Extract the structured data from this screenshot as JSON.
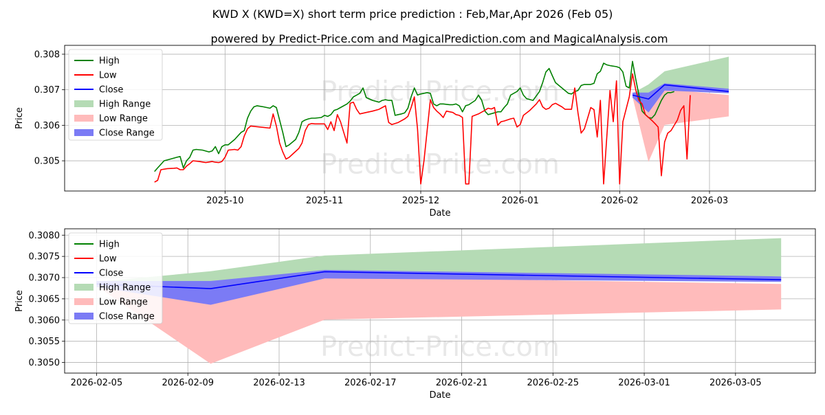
{
  "title_line1": "KWD X (KWD=X) short term price prediction : Feb,Mar,Apr 2026 (Feb 05)",
  "title_line2": "powered by Predict-Price.com and MagicalPrediction.com and MagicalAnalysis.com",
  "watermark": "Predict-Price.com",
  "colors": {
    "high": "#008000",
    "low": "#ff0000",
    "close": "#0000ff",
    "high_range": "#b5dbb5",
    "low_range": "#ffbbbb",
    "close_range": "#7b7bf5"
  },
  "legend": [
    "High",
    "Low",
    "Close",
    "High Range",
    "Low Range",
    "Close Range"
  ],
  "chart_data": [
    {
      "type": "line",
      "name": "history",
      "xlabel": "Date",
      "ylabel": "Price",
      "ylim": [
        0.30415,
        0.30825
      ],
      "xlim_days": [
        -20,
        214
      ],
      "x_origin": "2025-09-01",
      "xticks": [
        {
          "day": 30,
          "label": "2025-10"
        },
        {
          "day": 61,
          "label": "2025-11"
        },
        {
          "day": 91,
          "label": "2025-12"
        },
        {
          "day": 122,
          "label": "2026-01"
        },
        {
          "day": 153,
          "label": "2026-02"
        },
        {
          "day": 181,
          "label": "2026-03"
        }
      ],
      "yticks": [
        {
          "v": 0.305,
          "label": "0.305"
        },
        {
          "v": 0.306,
          "label": "0.306"
        },
        {
          "v": 0.307,
          "label": "0.307"
        },
        {
          "v": 0.308,
          "label": "0.308"
        }
      ],
      "high": [
        [
          8,
          0.3047
        ],
        [
          9,
          0.3048
        ],
        [
          11,
          0.305
        ],
        [
          13,
          0.30505
        ],
        [
          15,
          0.3051
        ],
        [
          16,
          0.30512
        ],
        [
          17,
          0.3048
        ],
        [
          18,
          0.305
        ],
        [
          19,
          0.3051
        ],
        [
          20,
          0.3053
        ],
        [
          21,
          0.30532
        ],
        [
          23,
          0.3053
        ],
        [
          25,
          0.30525
        ],
        [
          26,
          0.30528
        ],
        [
          27,
          0.3054
        ],
        [
          28,
          0.3052
        ],
        [
          29,
          0.3054
        ],
        [
          30,
          0.30545
        ],
        [
          31,
          0.30545
        ],
        [
          33,
          0.3056
        ],
        [
          35,
          0.3058
        ],
        [
          36,
          0.30585
        ],
        [
          37,
          0.3062
        ],
        [
          38,
          0.3064
        ],
        [
          39,
          0.30652
        ],
        [
          40,
          0.30655
        ],
        [
          42,
          0.30652
        ],
        [
          44,
          0.30648
        ],
        [
          45,
          0.30655
        ],
        [
          46,
          0.3065
        ],
        [
          48,
          0.3058
        ],
        [
          49,
          0.3054
        ],
        [
          50,
          0.30545
        ],
        [
          52,
          0.3056
        ],
        [
          53,
          0.3058
        ],
        [
          54,
          0.3061
        ],
        [
          55,
          0.30615
        ],
        [
          56,
          0.30618
        ],
        [
          57,
          0.3062
        ],
        [
          58,
          0.3062
        ],
        [
          60,
          0.30622
        ],
        [
          61,
          0.30628
        ],
        [
          62,
          0.30625
        ],
        [
          63,
          0.3063
        ],
        [
          64,
          0.30642
        ],
        [
          65,
          0.30645
        ],
        [
          66,
          0.3065
        ],
        [
          68,
          0.3066
        ],
        [
          69,
          0.30668
        ],
        [
          70,
          0.3068
        ],
        [
          71,
          0.30685
        ],
        [
          72,
          0.3069
        ],
        [
          73,
          0.30705
        ],
        [
          74,
          0.30678
        ],
        [
          76,
          0.3067
        ],
        [
          78,
          0.30665
        ],
        [
          79,
          0.3067
        ],
        [
          80,
          0.30672
        ],
        [
          81,
          0.3067
        ],
        [
          82,
          0.3067
        ],
        [
          83,
          0.30628
        ],
        [
          84,
          0.3063
        ],
        [
          85,
          0.30632
        ],
        [
          86,
          0.30635
        ],
        [
          87,
          0.30648
        ],
        [
          88,
          0.3068
        ],
        [
          89,
          0.30705
        ],
        [
          90,
          0.30685
        ],
        [
          91,
          0.30688
        ],
        [
          93,
          0.30692
        ],
        [
          94,
          0.3069
        ],
        [
          95,
          0.3066
        ],
        [
          96,
          0.30655
        ],
        [
          97,
          0.3066
        ],
        [
          98,
          0.3066
        ],
        [
          100,
          0.30658
        ],
        [
          101,
          0.30658
        ],
        [
          102,
          0.3066
        ],
        [
          103,
          0.30655
        ],
        [
          104,
          0.30638
        ],
        [
          105,
          0.30655
        ],
        [
          106,
          0.30658
        ],
        [
          108,
          0.3067
        ],
        [
          109,
          0.30685
        ],
        [
          110,
          0.3067
        ],
        [
          111,
          0.3064
        ],
        [
          112,
          0.3063
        ],
        [
          114,
          0.30635
        ],
        [
          115,
          0.30638
        ],
        [
          116,
          0.30638
        ],
        [
          117,
          0.3065
        ],
        [
          118,
          0.3066
        ],
        [
          119,
          0.30685
        ],
        [
          120,
          0.3069
        ],
        [
          121,
          0.30695
        ],
        [
          122,
          0.30705
        ],
        [
          123,
          0.30685
        ],
        [
          124,
          0.30675
        ],
        [
          126,
          0.3067
        ],
        [
          128,
          0.30695
        ],
        [
          129,
          0.3072
        ],
        [
          130,
          0.3075
        ],
        [
          131,
          0.3076
        ],
        [
          132,
          0.3074
        ],
        [
          133,
          0.3072
        ],
        [
          135,
          0.30705
        ],
        [
          137,
          0.3069
        ],
        [
          138,
          0.30688
        ],
        [
          139,
          0.30695
        ],
        [
          140,
          0.30698
        ],
        [
          141,
          0.30712
        ],
        [
          142,
          0.30715
        ],
        [
          144,
          0.30715
        ],
        [
          145,
          0.30718
        ],
        [
          146,
          0.30745
        ],
        [
          147,
          0.30752
        ],
        [
          148,
          0.30775
        ],
        [
          149,
          0.3077
        ],
        [
          150,
          0.30768
        ],
        [
          152,
          0.30765
        ],
        [
          153,
          0.30762
        ],
        [
          154,
          0.3075
        ],
        [
          155,
          0.3071
        ],
        [
          156,
          0.30705
        ],
        [
          157,
          0.3078
        ],
        [
          158,
          0.3073
        ],
        [
          160,
          0.3064
        ],
        [
          161,
          0.3063
        ],
        [
          162,
          0.30622
        ],
        [
          163,
          0.3062
        ],
        [
          164,
          0.3063
        ],
        [
          165,
          0.3065
        ],
        [
          166,
          0.3067
        ],
        [
          167,
          0.30685
        ],
        [
          168,
          0.30692
        ],
        [
          169,
          0.30692
        ],
        [
          170,
          0.30695
        ]
      ],
      "low": [
        [
          8,
          0.3044
        ],
        [
          9,
          0.30445
        ],
        [
          10,
          0.30475
        ],
        [
          12,
          0.30478
        ],
        [
          14,
          0.30479
        ],
        [
          15,
          0.3048
        ],
        [
          16,
          0.30475
        ],
        [
          17,
          0.30475
        ],
        [
          18,
          0.30485
        ],
        [
          19,
          0.30492
        ],
        [
          20,
          0.305
        ],
        [
          22,
          0.30498
        ],
        [
          24,
          0.30495
        ],
        [
          26,
          0.30498
        ],
        [
          27,
          0.30496
        ],
        [
          28,
          0.30495
        ],
        [
          29,
          0.30498
        ],
        [
          30,
          0.3051
        ],
        [
          31,
          0.3053
        ],
        [
          33,
          0.30532
        ],
        [
          34,
          0.3053
        ],
        [
          35,
          0.3054
        ],
        [
          36,
          0.3057
        ],
        [
          37,
          0.3059
        ],
        [
          38,
          0.30598
        ],
        [
          40,
          0.30596
        ],
        [
          42,
          0.30594
        ],
        [
          44,
          0.30592
        ],
        [
          45,
          0.30632
        ],
        [
          46,
          0.30598
        ],
        [
          47,
          0.3055
        ],
        [
          48,
          0.30525
        ],
        [
          49,
          0.30505
        ],
        [
          50,
          0.3051
        ],
        [
          53,
          0.30535
        ],
        [
          54,
          0.3055
        ],
        [
          55,
          0.30585
        ],
        [
          56,
          0.30602
        ],
        [
          57,
          0.30605
        ],
        [
          58,
          0.30604
        ],
        [
          61,
          0.30604
        ],
        [
          62,
          0.30588
        ],
        [
          63,
          0.3061
        ],
        [
          64,
          0.30585
        ],
        [
          65,
          0.3063
        ],
        [
          66,
          0.3061
        ],
        [
          67,
          0.3058
        ],
        [
          68,
          0.3055
        ],
        [
          69,
          0.30662
        ],
        [
          70,
          0.30665
        ],
        [
          71,
          0.30645
        ],
        [
          72,
          0.30632
        ],
        [
          74,
          0.30636
        ],
        [
          76,
          0.3064
        ],
        [
          78,
          0.30645
        ],
        [
          79,
          0.3065
        ],
        [
          80,
          0.30655
        ],
        [
          81,
          0.30608
        ],
        [
          82,
          0.30602
        ],
        [
          84,
          0.30608
        ],
        [
          86,
          0.30618
        ],
        [
          87,
          0.30625
        ],
        [
          88,
          0.3065
        ],
        [
          89,
          0.3068
        ],
        [
          90,
          0.3059
        ],
        [
          91,
          0.30435
        ],
        [
          92,
          0.305
        ],
        [
          94,
          0.30672
        ],
        [
          95,
          0.3065
        ],
        [
          96,
          0.3064
        ],
        [
          97,
          0.30632
        ],
        [
          98,
          0.30622
        ],
        [
          99,
          0.3064
        ],
        [
          101,
          0.30636
        ],
        [
          102,
          0.3063
        ],
        [
          103,
          0.30628
        ],
        [
          104,
          0.30622
        ],
        [
          105,
          0.30435
        ],
        [
          106,
          0.30435
        ],
        [
          107,
          0.30625
        ],
        [
          109,
          0.30632
        ],
        [
          111,
          0.30642
        ],
        [
          112,
          0.30648
        ],
        [
          113,
          0.30646
        ],
        [
          114,
          0.3065
        ],
        [
          115,
          0.306
        ],
        [
          116,
          0.3061
        ],
        [
          117,
          0.30612
        ],
        [
          119,
          0.30618
        ],
        [
          120,
          0.3062
        ],
        [
          121,
          0.30595
        ],
        [
          122,
          0.30602
        ],
        [
          123,
          0.30628
        ],
        [
          125,
          0.30642
        ],
        [
          127,
          0.3066
        ],
        [
          128,
          0.30672
        ],
        [
          129,
          0.30652
        ],
        [
          130,
          0.30645
        ],
        [
          131,
          0.30648
        ],
        [
          132,
          0.30658
        ],
        [
          133,
          0.30662
        ],
        [
          135,
          0.30652
        ],
        [
          136,
          0.30645
        ],
        [
          138,
          0.30645
        ],
        [
          139,
          0.30705
        ],
        [
          140,
          0.30635
        ],
        [
          141,
          0.30578
        ],
        [
          142,
          0.3059
        ],
        [
          143,
          0.3062
        ],
        [
          144,
          0.3065
        ],
        [
          145,
          0.30644
        ],
        [
          146,
          0.30567
        ],
        [
          147,
          0.3067
        ],
        [
          148,
          0.30435
        ],
        [
          149,
          0.3057
        ],
        [
          150,
          0.30698
        ],
        [
          151,
          0.3061
        ],
        [
          152,
          0.30725
        ],
        [
          153,
          0.30435
        ],
        [
          154,
          0.3061
        ],
        [
          156,
          0.3068
        ],
        [
          157,
          0.30745
        ],
        [
          158,
          0.307
        ],
        [
          159,
          0.3067
        ],
        [
          160,
          0.3066
        ],
        [
          161,
          0.3063
        ],
        [
          163,
          0.30614
        ],
        [
          164,
          0.30605
        ],
        [
          165,
          0.30595
        ],
        [
          166,
          0.30458
        ],
        [
          167,
          0.30553
        ],
        [
          168,
          0.30578
        ],
        [
          169,
          0.30585
        ],
        [
          171,
          0.30615
        ],
        [
          172,
          0.30642
        ],
        [
          173,
          0.30655
        ],
        [
          174,
          0.30505
        ],
        [
          175,
          0.30685
        ]
      ]
    },
    {
      "type": "line",
      "name": "forecast",
      "xlabel": "Date",
      "ylabel": "Price",
      "ylim": [
        0.30475,
        0.30815
      ],
      "xlim_days": [
        -1.4,
        31.5
      ],
      "x_origin": "2026-02-05",
      "xticks": [
        {
          "day": 0,
          "label": "2026-02-05"
        },
        {
          "day": 4,
          "label": "2026-02-09"
        },
        {
          "day": 8,
          "label": "2026-02-13"
        },
        {
          "day": 12,
          "label": "2026-02-17"
        },
        {
          "day": 16,
          "label": "2026-02-21"
        },
        {
          "day": 20,
          "label": "2026-02-25"
        },
        {
          "day": 24,
          "label": "2026-03-01"
        },
        {
          "day": 28,
          "label": "2026-03-05"
        }
      ],
      "yticks": [
        {
          "v": 0.305,
          "label": "0.3050"
        },
        {
          "v": 0.3055,
          "label": "0.3055"
        },
        {
          "v": 0.306,
          "label": "0.3060"
        },
        {
          "v": 0.3065,
          "label": "0.3065"
        },
        {
          "v": 0.307,
          "label": "0.3070"
        },
        {
          "v": 0.3075,
          "label": "0.3075"
        },
        {
          "v": 0.308,
          "label": "0.3080"
        }
      ],
      "x": [
        0,
        5,
        10,
        30
      ],
      "close": [
        0.30685,
        0.30674,
        0.30714,
        0.30695
      ],
      "high_range": {
        "upper": [
          0.3069,
          0.30715,
          0.30752,
          0.30793
        ],
        "lower": [
          0.3068,
          0.30675,
          0.3071,
          0.30703
        ]
      },
      "low_range": {
        "upper": [
          0.3069,
          0.30675,
          0.30702,
          0.30685
        ],
        "lower": [
          0.3068,
          0.30497,
          0.30601,
          0.30625
        ]
      },
      "close_range": {
        "upper": [
          0.30692,
          0.30692,
          0.30718,
          0.30703
        ],
        "lower": [
          0.30678,
          0.30636,
          0.30698,
          0.3069
        ]
      }
    }
  ]
}
